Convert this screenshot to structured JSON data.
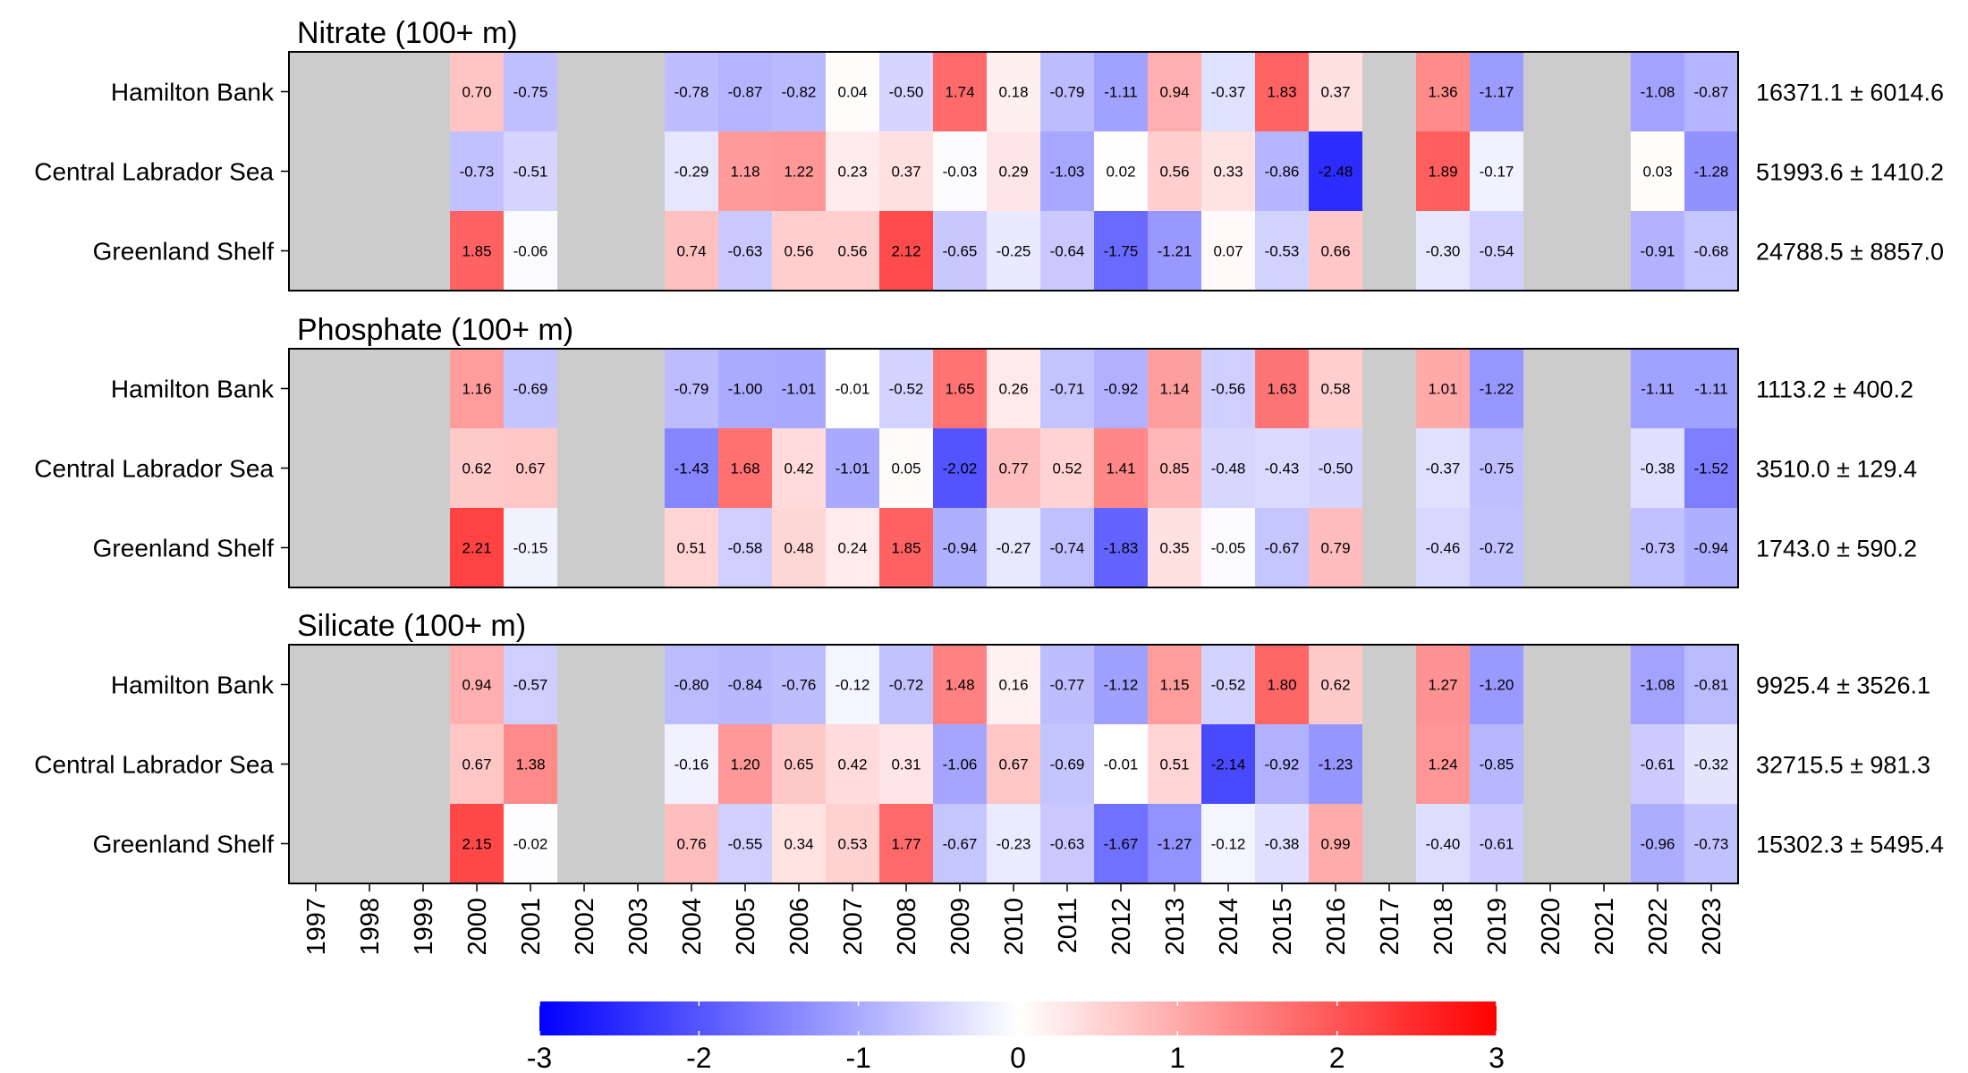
{
  "chart_data": {
    "type": "heatmap",
    "years": [
      "1997",
      "1998",
      "1999",
      "2000",
      "2001",
      "2002",
      "2003",
      "2004",
      "2005",
      "2006",
      "2007",
      "2008",
      "2009",
      "2010",
      "2011",
      "2012",
      "2013",
      "2014",
      "2015",
      "2016",
      "2017",
      "2018",
      "2019",
      "2020",
      "2021",
      "2022",
      "2023"
    ],
    "colorscale": {
      "min": -3,
      "max": 3,
      "low_color": "#0000ff",
      "mid_color": "#ffffff",
      "high_color": "#ff0000",
      "missing_color": "#cccccc",
      "ticks": [
        "-3",
        "-2",
        "-1",
        "0",
        "1",
        "2",
        "3"
      ]
    },
    "panels": [
      {
        "title": "Nitrate (100+ m)",
        "rows": [
          {
            "name": "Hamilton Bank",
            "stat": "16371.1 ± 6014.6",
            "values": [
              null,
              null,
              null,
              0.7,
              -0.75,
              null,
              null,
              -0.78,
              -0.87,
              -0.82,
              0.04,
              -0.5,
              1.74,
              0.18,
              -0.79,
              -1.11,
              0.94,
              -0.37,
              1.83,
              0.37,
              null,
              1.36,
              -1.17,
              null,
              null,
              -1.08,
              -0.87
            ],
            "labels": [
              "",
              "",
              "",
              "0.70",
              "-0.75",
              "",
              "",
              "-0.78",
              "-0.87",
              "-0.82",
              "0.04",
              "-0.50",
              "1.74",
              "0.18",
              "-0.79",
              "-1.11",
              "0.94",
              "-0.37",
              "1.83",
              "0.37",
              "",
              "1.36",
              "-1.17",
              "",
              "",
              "-1.08",
              "-0.87"
            ]
          },
          {
            "name": "Central Labrador Sea",
            "stat": "51993.6 ± 1410.2",
            "values": [
              null,
              null,
              null,
              -0.73,
              -0.51,
              null,
              null,
              -0.29,
              1.18,
              1.22,
              0.23,
              0.37,
              -0.03,
              0.29,
              -1.03,
              0.02,
              0.56,
              0.33,
              -0.86,
              -2.48,
              null,
              1.89,
              -0.17,
              null,
              null,
              0.03,
              -1.28
            ],
            "labels": [
              "",
              "",
              "",
              "-0.73",
              "-0.51",
              "",
              "",
              "-0.29",
              "1.18",
              "1.22",
              "0.23",
              "0.37",
              "-0.03",
              "0.29",
              "-1.03",
              "0.02",
              "0.56",
              "0.33",
              "-0.86",
              "-2.48",
              "",
              "1.89",
              "-0.17",
              "",
              "",
              "0.03",
              "-1.28"
            ]
          },
          {
            "name": "Greenland Shelf",
            "stat": "24788.5 ± 8857.0",
            "values": [
              null,
              null,
              null,
              1.85,
              -0.06,
              null,
              null,
              0.74,
              -0.63,
              0.56,
              0.56,
              2.12,
              -0.65,
              -0.25,
              -0.64,
              -1.75,
              -1.21,
              0.07,
              -0.53,
              0.66,
              null,
              -0.3,
              -0.54,
              null,
              null,
              -0.91,
              -0.68
            ],
            "labels": [
              "",
              "",
              "",
              "1.85",
              "-0.06",
              "",
              "",
              "0.74",
              "-0.63",
              "0.56",
              "0.56",
              "2.12",
              "-0.65",
              "-0.25",
              "-0.64",
              "-1.75",
              "-1.21",
              "0.07",
              "-0.53",
              "0.66",
              "",
              "-0.30",
              "-0.54",
              "",
              "",
              "-0.91",
              "-0.68"
            ]
          }
        ]
      },
      {
        "title": "Phosphate (100+ m)",
        "rows": [
          {
            "name": "Hamilton Bank",
            "stat": "1113.2 ± 400.2",
            "values": [
              null,
              null,
              null,
              1.16,
              -0.69,
              null,
              null,
              -0.79,
              -1.0,
              -1.01,
              -0.01,
              -0.52,
              1.65,
              0.26,
              -0.71,
              -0.92,
              1.14,
              -0.56,
              1.63,
              0.58,
              null,
              1.01,
              -1.22,
              null,
              null,
              -1.11,
              -1.11
            ],
            "labels": [
              "",
              "",
              "",
              "1.16",
              "-0.69",
              "",
              "",
              "-0.79",
              "-1.00",
              "-1.01",
              "-0.01",
              "-0.52",
              "1.65",
              "0.26",
              "-0.71",
              "-0.92",
              "1.14",
              "-0.56",
              "1.63",
              "0.58",
              "",
              "1.01",
              "-1.22",
              "",
              "",
              "-1.11",
              "-1.11"
            ]
          },
          {
            "name": "Central Labrador Sea",
            "stat": "3510.0 ± 129.4",
            "values": [
              null,
              null,
              null,
              0.62,
              0.67,
              null,
              null,
              -1.43,
              1.68,
              0.42,
              -1.01,
              0.05,
              -2.02,
              0.77,
              0.52,
              1.41,
              0.85,
              -0.48,
              -0.43,
              -0.5,
              null,
              -0.37,
              -0.75,
              null,
              null,
              -0.38,
              -1.52
            ],
            "labels": [
              "",
              "",
              "",
              "0.62",
              "0.67",
              "",
              "",
              "-1.43",
              "1.68",
              "0.42",
              "-1.01",
              "0.05",
              "-2.02",
              "0.77",
              "0.52",
              "1.41",
              "0.85",
              "-0.48",
              "-0.43",
              "-0.50",
              "",
              "-0.37",
              "-0.75",
              "",
              "",
              "-0.38",
              "-1.52"
            ]
          },
          {
            "name": "Greenland Shelf",
            "stat": "1743.0 ± 590.2",
            "values": [
              null,
              null,
              null,
              2.21,
              -0.15,
              null,
              null,
              0.51,
              -0.58,
              0.48,
              0.24,
              1.85,
              -0.94,
              -0.27,
              -0.74,
              -1.83,
              0.35,
              -0.05,
              -0.67,
              0.79,
              null,
              -0.46,
              -0.72,
              null,
              null,
              -0.73,
              -0.94
            ],
            "labels": [
              "",
              "",
              "",
              "2.21",
              "-0.15",
              "",
              "",
              "0.51",
              "-0.58",
              "0.48",
              "0.24",
              "1.85",
              "-0.94",
              "-0.27",
              "-0.74",
              "-1.83",
              "0.35",
              "-0.05",
              "-0.67",
              "0.79",
              "",
              "-0.46",
              "-0.72",
              "",
              "",
              "-0.73",
              "-0.94"
            ]
          }
        ]
      },
      {
        "title": "Silicate (100+ m)",
        "rows": [
          {
            "name": "Hamilton Bank",
            "stat": "9925.4 ± 3526.1",
            "values": [
              null,
              null,
              null,
              0.94,
              -0.57,
              null,
              null,
              -0.8,
              -0.84,
              -0.76,
              -0.12,
              -0.72,
              1.48,
              0.16,
              -0.77,
              -1.12,
              1.15,
              -0.52,
              1.8,
              0.62,
              null,
              1.27,
              -1.2,
              null,
              null,
              -1.08,
              -0.81
            ],
            "labels": [
              "",
              "",
              "",
              "0.94",
              "-0.57",
              "",
              "",
              "-0.80",
              "-0.84",
              "-0.76",
              "-0.12",
              "-0.72",
              "1.48",
              "0.16",
              "-0.77",
              "-1.12",
              "1.15",
              "-0.52",
              "1.80",
              "0.62",
              "",
              "1.27",
              "-1.20",
              "",
              "",
              "-1.08",
              "-0.81"
            ]
          },
          {
            "name": "Central Labrador Sea",
            "stat": "32715.5 ± 981.3",
            "values": [
              null,
              null,
              null,
              0.67,
              1.38,
              null,
              null,
              -0.16,
              1.2,
              0.65,
              0.42,
              0.31,
              -1.06,
              0.67,
              -0.69,
              -0.01,
              0.51,
              -2.14,
              -0.92,
              -1.23,
              null,
              1.24,
              -0.85,
              null,
              null,
              -0.61,
              -0.32
            ],
            "labels": [
              "",
              "",
              "",
              "0.67",
              "1.38",
              "",
              "",
              "-0.16",
              "1.20",
              "0.65",
              "0.42",
              "0.31",
              "-1.06",
              "0.67",
              "-0.69",
              "-0.01",
              "0.51",
              "-2.14",
              "-0.92",
              "-1.23",
              "",
              "1.24",
              "-0.85",
              "",
              "",
              "-0.61",
              "-0.32"
            ]
          },
          {
            "name": "Greenland Shelf",
            "stat": "15302.3 ± 5495.4",
            "values": [
              null,
              null,
              null,
              2.15,
              -0.02,
              null,
              null,
              0.76,
              -0.55,
              0.34,
              0.53,
              1.77,
              -0.67,
              -0.23,
              -0.63,
              -1.67,
              -1.27,
              -0.12,
              -0.38,
              0.99,
              null,
              -0.4,
              -0.61,
              null,
              null,
              -0.96,
              -0.73
            ],
            "labels": [
              "",
              "",
              "",
              "2.15",
              "-0.02",
              "",
              "",
              "0.76",
              "-0.55",
              "0.34",
              "0.53",
              "1.77",
              "-0.67",
              "-0.23",
              "-0.63",
              "-1.67",
              "-1.27",
              "-0.12",
              "-0.38",
              "0.99",
              "",
              "-0.40",
              "-0.61",
              "",
              "",
              "-0.96",
              "-0.73"
            ]
          }
        ]
      }
    ]
  }
}
